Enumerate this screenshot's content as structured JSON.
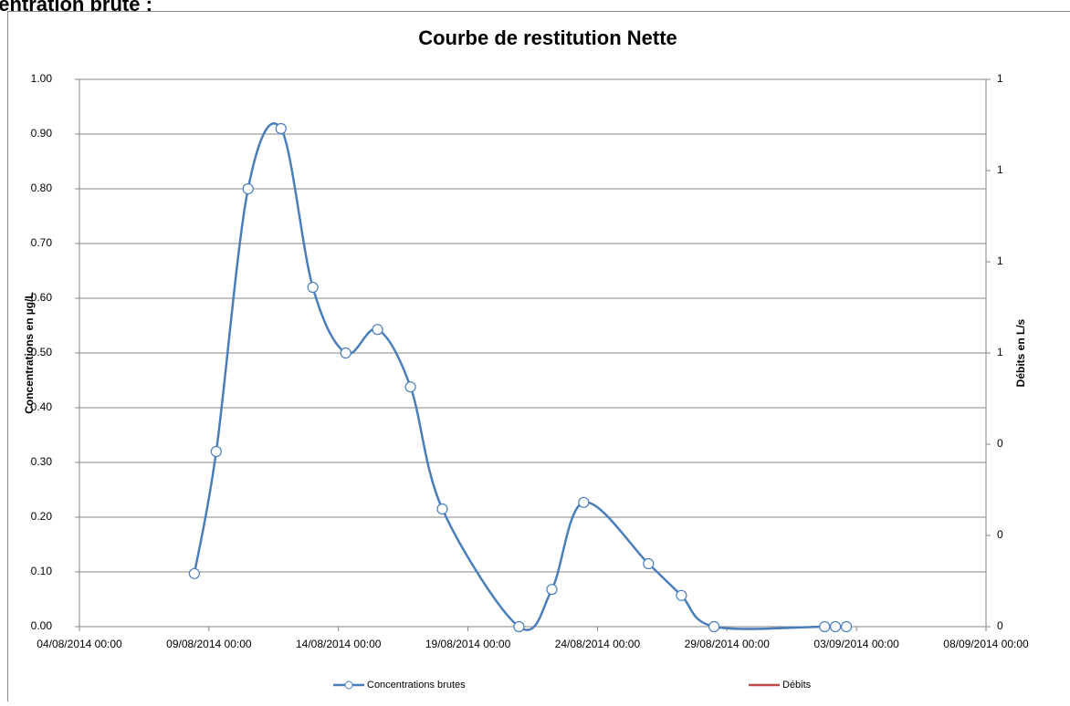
{
  "heading": "centration brute :",
  "chart_data": {
    "type": "line",
    "title": "Courbe de restitution Nette",
    "y_label": "Concentrations en µg/L",
    "y2_label": "Débits en L/s",
    "x": [
      "2014-08-08T10:30",
      "2014-08-09T06:45",
      "2014-08-10T12:15",
      "2014-08-11T18:45",
      "2014-08-13T00:15",
      "2014-08-14T06:45",
      "2014-08-15T12:15",
      "2014-08-16T18:45",
      "2014-08-18T00:15",
      "2014-08-20T23:15",
      "2014-08-22T05:45",
      "2014-08-23T11:15",
      "2014-08-25T23:15",
      "2014-08-27T05:45",
      "2014-08-28T12:00",
      "2014-09-01T18:30",
      "2014-09-02T04:30",
      "2014-09-02T14:40"
    ],
    "series": [
      {
        "name": "Concentrations brutes",
        "color": "#4a7ebb",
        "values": [
          0.097,
          0.32,
          0.8,
          0.91,
          0.62,
          0.5,
          0.543,
          0.438,
          0.215,
          0,
          0.068,
          0.227,
          0.115,
          0.057,
          0,
          0,
          0,
          0
        ]
      },
      {
        "name": "Débits",
        "color": "#be4b48",
        "axis": "y2",
        "values": [
          null,
          null,
          null,
          null,
          null,
          null,
          null,
          null,
          null,
          null,
          null,
          null,
          null,
          null,
          null,
          null,
          null,
          null
        ]
      }
    ],
    "xlim": [
      "2014-08-04T00:00",
      "2014-09-08T00:00"
    ],
    "xticks": [
      {
        "value": "2014-08-04T00:00",
        "label": "04/08/2014 00:00"
      },
      {
        "value": "2014-08-09T00:00",
        "label": "09/08/2014 00:00"
      },
      {
        "value": "2014-08-14T00:00",
        "label": "14/08/2014 00:00"
      },
      {
        "value": "2014-08-19T00:00",
        "label": "19/08/2014 00:00"
      },
      {
        "value": "2014-08-24T00:00",
        "label": "24/08/2014 00:00"
      },
      {
        "value": "2014-08-29T00:00",
        "label": "29/08/2014 00:00"
      },
      {
        "value": "2014-09-03T00:00",
        "label": "03/09/2014 00:00"
      },
      {
        "value": "2014-09-08T00:00",
        "label": "08/09/2014 00:00"
      }
    ],
    "ylim": [
      0,
      1
    ],
    "yticks": [
      {
        "value": 0,
        "label": "0.00"
      },
      {
        "value": 0.1,
        "label": "0.10"
      },
      {
        "value": 0.2,
        "label": "0.20"
      },
      {
        "value": 0.3,
        "label": "0.30"
      },
      {
        "value": 0.4,
        "label": "0.40"
      },
      {
        "value": 0.5,
        "label": "0.50"
      },
      {
        "value": 0.6,
        "label": "0.60"
      },
      {
        "value": 0.7,
        "label": "0.70"
      },
      {
        "value": 0.8,
        "label": "0.80"
      },
      {
        "value": 0.9,
        "label": "0.90"
      },
      {
        "value": 1,
        "label": "1.00"
      }
    ],
    "y2lim": [
      0,
      1.2
    ],
    "y2ticks": [
      0,
      {
        "value": 0.2,
        "label": "0"
      },
      {
        "value": 0.4,
        "label": "0"
      },
      {
        "value": 0.6,
        "label": "1"
      },
      {
        "value": 0.8,
        "label": "1"
      },
      1,
      {
        "value": 1.2,
        "label": "1"
      }
    ],
    "grid": true,
    "smooth": true,
    "legend": "bottom"
  }
}
